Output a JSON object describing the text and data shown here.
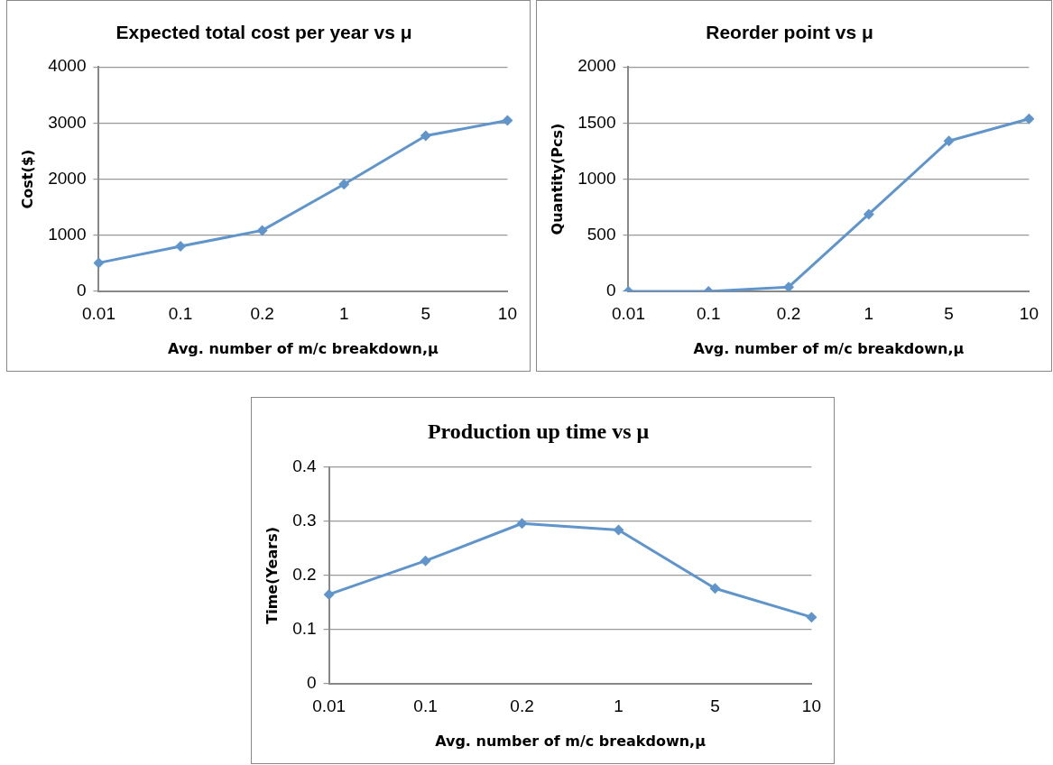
{
  "chart_data": [
    {
      "type": "line",
      "title": "Expected total cost per year vs μ",
      "xlabel": "Avg. number of m/c breakdown,μ",
      "ylabel": "Cost($)",
      "categories": [
        "0.01",
        "0.1",
        "0.2",
        "1",
        "5",
        "10"
      ],
      "series": [
        {
          "color": "#5f95cb",
          "values": [
            508,
            804,
            1087,
            1910,
            2772,
            3048
          ]
        }
      ],
      "ylim": [
        0,
        4000
      ],
      "yticks": [
        0,
        1000,
        2000,
        3000,
        4000
      ],
      "grid": "y",
      "legend": false,
      "marker": "diamond",
      "line_style": "solid"
    },
    {
      "type": "line",
      "title": "Reorder point vs μ",
      "xlabel": "Avg. number of m/c breakdown,μ",
      "ylabel": "Quantity(Pcs)",
      "categories": [
        "0.01",
        "0.1",
        "0.2",
        "1",
        "5",
        "10"
      ],
      "series": [
        {
          "color": "#5f95cb",
          "values": [
            0,
            0,
            39,
            688,
            1341,
            1537
          ]
        }
      ],
      "ylim": [
        0,
        2000
      ],
      "yticks": [
        0,
        500,
        1000,
        1500,
        2000
      ],
      "grid": "y",
      "legend": false,
      "marker": "diamond",
      "line_style": "solid"
    },
    {
      "type": "line",
      "title": "Production up time vs μ",
      "xlabel": "Avg. number of m/c breakdown,μ",
      "ylabel": "Time(Years)",
      "categories": [
        "0.01",
        "0.1",
        "0.2",
        "1",
        "5",
        "10"
      ],
      "series": [
        {
          "color": "#5f95cb",
          "values": [
            0.165,
            0.227,
            0.296,
            0.284,
            0.176,
            0.123
          ]
        }
      ],
      "ylim": [
        0,
        0.4
      ],
      "yticks": [
        0,
        0.1,
        0.2,
        0.3,
        0.4
      ],
      "grid": "y",
      "legend": false,
      "marker": "diamond",
      "line_style": "solid"
    }
  ]
}
